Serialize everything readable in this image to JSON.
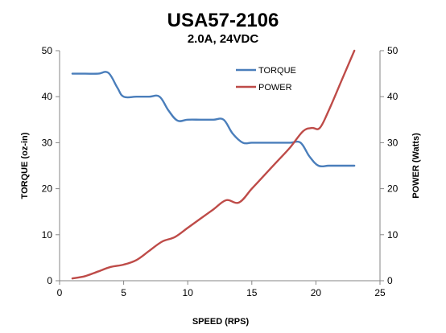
{
  "chart_data": {
    "type": "line",
    "title": "USA57-2106",
    "subtitle": "2.0A, 24VDC",
    "xlabel": "SPEED (RPS)",
    "ylabel_left": "TORQUE (oz-in)",
    "ylabel_right": "POWER (Watts)",
    "xlim": [
      0,
      25
    ],
    "xticks": [
      0,
      5,
      10,
      15,
      20,
      25
    ],
    "ylim_left": [
      0,
      50
    ],
    "ylim_right": [
      0,
      50
    ],
    "yticks": [
      0,
      10,
      20,
      30,
      40,
      50
    ],
    "grid": false,
    "legend_position": "top-right",
    "series": [
      {
        "name": "TORQUE",
        "axis": "left",
        "color": "#4A7EBB",
        "points": [
          [
            1,
            45
          ],
          [
            2,
            45
          ],
          [
            3,
            45
          ],
          [
            3.8,
            45.2
          ],
          [
            4.5,
            42
          ],
          [
            5,
            40
          ],
          [
            6,
            40
          ],
          [
            7,
            40
          ],
          [
            7.8,
            40
          ],
          [
            8.5,
            37
          ],
          [
            9.2,
            34.8
          ],
          [
            10,
            35
          ],
          [
            11,
            35
          ],
          [
            12,
            35
          ],
          [
            12.8,
            35
          ],
          [
            13.5,
            32
          ],
          [
            14.3,
            30
          ],
          [
            15,
            30
          ],
          [
            16,
            30
          ],
          [
            17,
            30
          ],
          [
            18,
            30
          ],
          [
            18.8,
            30
          ],
          [
            19.5,
            27
          ],
          [
            20.2,
            25
          ],
          [
            21,
            25
          ],
          [
            22,
            25
          ],
          [
            23,
            25
          ]
        ]
      },
      {
        "name": "POWER",
        "axis": "right",
        "color": "#BE4B48",
        "points": [
          [
            1,
            0.5
          ],
          [
            2,
            1
          ],
          [
            3,
            2
          ],
          [
            4,
            3
          ],
          [
            5,
            3.5
          ],
          [
            6,
            4.5
          ],
          [
            7,
            6.5
          ],
          [
            8,
            8.5
          ],
          [
            9,
            9.5
          ],
          [
            10,
            11.5
          ],
          [
            11,
            13.5
          ],
          [
            12,
            15.5
          ],
          [
            13,
            17.5
          ],
          [
            14,
            17
          ],
          [
            15,
            20
          ],
          [
            16,
            23
          ],
          [
            17,
            26
          ],
          [
            18,
            29
          ],
          [
            19,
            32.5
          ],
          [
            19.7,
            33.2
          ],
          [
            20.3,
            33.2
          ],
          [
            21,
            37
          ],
          [
            22,
            43.5
          ],
          [
            23,
            50
          ]
        ]
      }
    ]
  }
}
